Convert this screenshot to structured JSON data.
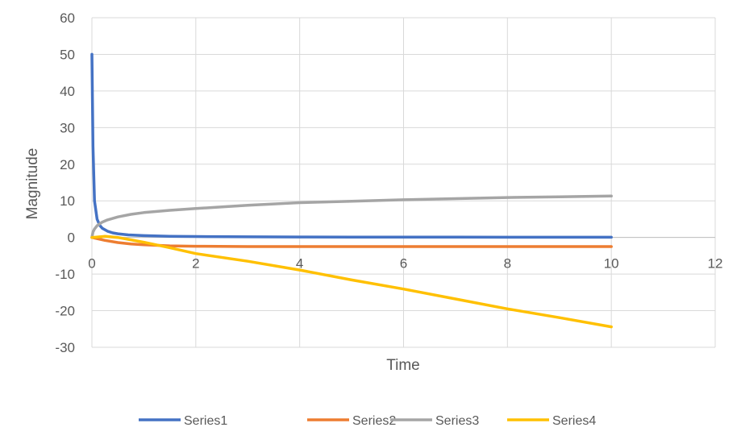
{
  "chart_data": {
    "type": "scatter",
    "title": "",
    "xlabel": "Time",
    "ylabel": "Magnitude",
    "xlim": [
      0,
      12
    ],
    "ylim": [
      -30,
      60
    ],
    "xticks": [
      0,
      2,
      4,
      6,
      8,
      10,
      12
    ],
    "yticks": [
      -30,
      -20,
      -10,
      0,
      10,
      20,
      30,
      40,
      50,
      60
    ],
    "grid": true,
    "legend_position": "bottom",
    "series": [
      {
        "name": "Series1",
        "color": "#4472C4",
        "x": [
          0.0,
          0.02,
          0.05,
          0.1,
          0.15,
          0.2,
          0.3,
          0.4,
          0.5,
          0.7,
          1.0,
          1.5,
          2.0,
          3.0,
          4.0,
          5.0,
          6.0,
          7.0,
          8.0,
          9.0,
          10.0
        ],
        "y": [
          50,
          25,
          10,
          5,
          3.3,
          2.5,
          1.7,
          1.25,
          1.0,
          0.7,
          0.5,
          0.3,
          0.25,
          0.17,
          0.13,
          0.1,
          0.08,
          0.07,
          0.06,
          0.06,
          0.05
        ]
      },
      {
        "name": "Series2",
        "color": "#ED7D31",
        "x": [
          0.0,
          0.25,
          0.5,
          0.75,
          1.0,
          1.5,
          2.0,
          3.0,
          4.0,
          5.0,
          6.0,
          7.0,
          8.0,
          9.0,
          10.0
        ],
        "y": [
          0,
          -0.8,
          -1.4,
          -1.8,
          -2.0,
          -2.3,
          -2.4,
          -2.5,
          -2.5,
          -2.5,
          -2.5,
          -2.5,
          -2.5,
          -2.5,
          -2.5
        ]
      },
      {
        "name": "Series3",
        "color": "#A5A5A5",
        "x": [
          0.0,
          0.02,
          0.05,
          0.1,
          0.2,
          0.3,
          0.5,
          0.75,
          1.0,
          1.5,
          2.0,
          3.0,
          4.0,
          5.0,
          6.0,
          7.0,
          8.0,
          9.0,
          10.0
        ],
        "y": [
          0,
          1.5,
          2.3,
          3.2,
          4.2,
          4.8,
          5.6,
          6.3,
          6.8,
          7.4,
          7.9,
          8.8,
          9.5,
          9.9,
          10.3,
          10.6,
          10.9,
          11.1,
          11.3
        ]
      },
      {
        "name": "Series4",
        "color": "#FFC000",
        "x": [
          0.0,
          0.25,
          0.5,
          1.0,
          1.5,
          2.0,
          3.0,
          4.0,
          5.0,
          6.0,
          7.0,
          8.0,
          9.0,
          10.0
        ],
        "y": [
          0,
          0.3,
          0.0,
          -1.3,
          -2.8,
          -4.4,
          -6.5,
          -8.9,
          -11.6,
          -14.1,
          -16.8,
          -19.5,
          -21.9,
          -24.4
        ]
      }
    ]
  }
}
